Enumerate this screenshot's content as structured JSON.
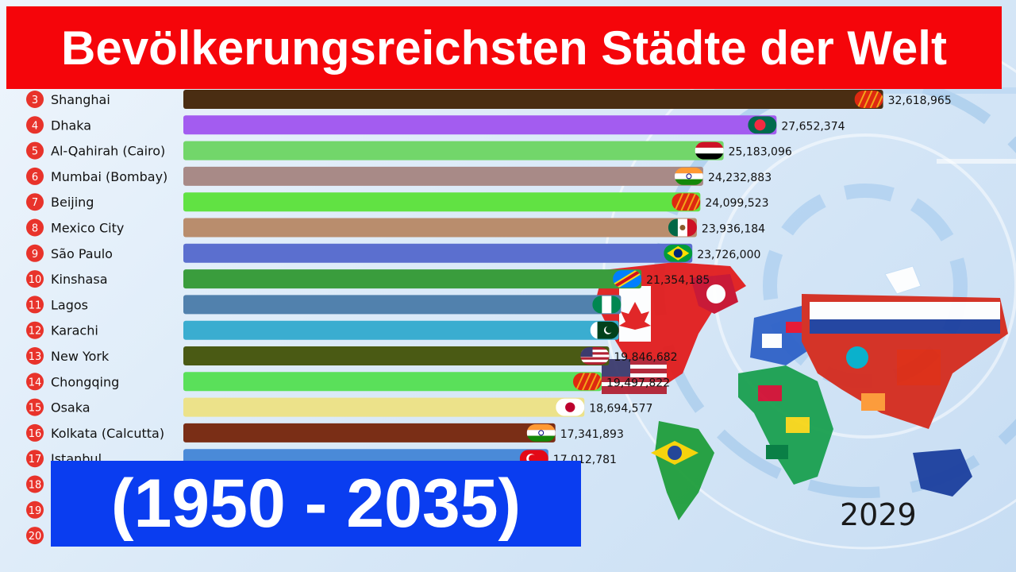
{
  "title": "Bevölkerungsreichsten Städte der Welt",
  "year_range": "(1950 - 2035)",
  "year": "2029",
  "chart_data": {
    "type": "bar",
    "orientation": "horizontal",
    "xlim": [
      0,
      37000000
    ],
    "ranks": [
      "3",
      "4",
      "5",
      "6",
      "7",
      "8",
      "9",
      "10",
      "11",
      "12",
      "13",
      "14",
      "15",
      "16",
      "17",
      "18",
      "19",
      "20"
    ],
    "categories": [
      "Shanghai",
      "Dhaka",
      "Al-Qahirah (Cairo)",
      "Mumbai (Bombay)",
      "Beijing",
      "Mexico City",
      "São Paulo",
      "Kinshasa",
      "Lagos",
      "Karachi",
      "New York",
      "Chongqing",
      "Osaka",
      "Kolkata (Calcutta)",
      "Istanbul"
    ],
    "values": [
      32618965,
      27652374,
      25183096,
      24232883,
      24099523,
      23936184,
      23726000,
      21354185,
      20400000,
      20300000,
      19846682,
      19497822,
      18694577,
      17341893,
      17012781
    ],
    "value_labels": [
      "32,618,965",
      "27,652,374",
      "25,183,096",
      "24,232,883",
      "24,099,523",
      "23,936,184",
      "23,726,000",
      "21,354,185",
      "",
      "",
      "19,846,682",
      "19,497,822",
      "18,694,577",
      "17,341,893",
      "17,012,781"
    ],
    "colors": [
      "#4a2d12",
      "#a35cf0",
      "#72d66a",
      "#a88a87",
      "#61e243",
      "#b98d6d",
      "#5b6fcf",
      "#3a9d3d",
      "#5181ad",
      "#3aadd0",
      "#4a5a14",
      "#5ae05a",
      "#ece28a",
      "#7a2e16",
      "#4a8ad8"
    ],
    "flags": [
      "china-flag",
      "bangladesh-flag",
      "egypt-flag",
      "india-flag",
      "china-flag",
      "mexico-flag",
      "brazil-flag",
      "dr-congo-flag",
      "nigeria-flag",
      "pakistan-flag",
      "usa-flag",
      "china-flag",
      "japan-flag",
      "india-flag",
      "turkey-flag"
    ]
  }
}
